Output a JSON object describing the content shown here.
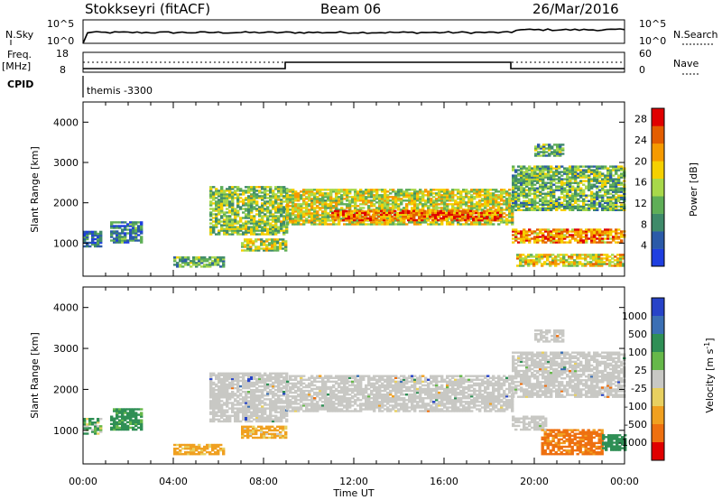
{
  "header": {
    "title": "Stokkseyri (fitACF)",
    "beam": "Beam 06",
    "date": "26/Mar/2016"
  },
  "top_panels": {
    "nsky_label": "N.Sky",
    "nsearch_label": "N.Search",
    "nsky_ticks": [
      "10^5",
      "10^0"
    ],
    "nsearch_ticks": [
      "10^5",
      "10^0"
    ],
    "freq_label": "Freq.",
    "freq_unit": "[MHz]",
    "freq_ticks": [
      "18",
      "8"
    ],
    "nave_label": "Nave",
    "nave_ticks": [
      "60",
      "0"
    ],
    "cpid_label": "CPID",
    "cpid_text": "themis -3300"
  },
  "colors": {
    "power_scale": [
      "#1f3fe0",
      "#2b5aa8",
      "#3f8a6a",
      "#5fae57",
      "#a8d84a",
      "#f5d000",
      "#f59a00",
      "#e35d00",
      "#e00000"
    ],
    "velocity_scale": [
      "#2743c8",
      "#3b6fb4",
      "#2f8f55",
      "#66b84a",
      "#c8c8c4",
      "#e8d060",
      "#f0a020",
      "#ee7010",
      "#e00000"
    ],
    "ground_scatter": "#c8c8c4"
  },
  "chart_data": [
    {
      "type": "heatmap",
      "panel": "power",
      "title": "",
      "xlabel": "Time UT",
      "ylabel": "Slant Range [km]",
      "xlim": [
        "00:00",
        "00:00"
      ],
      "ylim": [
        180,
        4500
      ],
      "x_ticks": [
        "00:00",
        "04:00",
        "08:00",
        "12:00",
        "16:00",
        "20:00",
        "00:00"
      ],
      "y_ticks": [
        "1000",
        "2000",
        "3000",
        "4000"
      ],
      "colorbar": {
        "label": "Power [dB]",
        "ticks": [
          "4",
          "8",
          "12",
          "16",
          "20",
          "24",
          "28"
        ],
        "range": [
          0,
          30
        ]
      },
      "regions": [
        {
          "t0": 0.0,
          "t1": 0.8,
          "r0": 900,
          "r1": 1300,
          "level": 0.2
        },
        {
          "t0": 1.2,
          "t1": 2.6,
          "r0": 1000,
          "r1": 1500,
          "level": 0.25
        },
        {
          "t0": 4.0,
          "t1": 6.2,
          "r0": 400,
          "r1": 650,
          "level": 0.35
        },
        {
          "t0": 5.6,
          "t1": 9.0,
          "r0": 1200,
          "r1": 2400,
          "level": 0.45
        },
        {
          "t0": 7.0,
          "t1": 9.0,
          "r0": 800,
          "r1": 1100,
          "level": 0.5
        },
        {
          "t0": 9.0,
          "t1": 19.0,
          "r0": 1450,
          "r1": 2350,
          "level": 0.55
        },
        {
          "t0": 11.0,
          "t1": 18.5,
          "r0": 1550,
          "r1": 1800,
          "level": 0.8
        },
        {
          "t0": 19.0,
          "t1": 24.0,
          "r0": 1000,
          "r1": 1350,
          "level": 0.75
        },
        {
          "t0": 19.2,
          "t1": 24.0,
          "r0": 420,
          "r1": 700,
          "level": 0.6
        },
        {
          "t0": 19.0,
          "t1": 24.0,
          "r0": 1800,
          "r1": 2900,
          "level": 0.4
        },
        {
          "t0": 20.0,
          "t1": 21.3,
          "r0": 3150,
          "r1": 3450,
          "level": 0.35
        }
      ]
    },
    {
      "type": "heatmap",
      "panel": "velocity",
      "title": "",
      "xlabel": "Time UT",
      "ylabel": "Slant Range [km]",
      "xlim": [
        "00:00",
        "00:00"
      ],
      "ylim": [
        180,
        4500
      ],
      "x_ticks": [
        "00:00",
        "04:00",
        "08:00",
        "12:00",
        "16:00",
        "20:00",
        "00:00"
      ],
      "y_ticks": [
        "1000",
        "2000",
        "3000",
        "4000"
      ],
      "colorbar": {
        "label": "Velocity [m s^-1]",
        "ticks": [
          "1000",
          "500",
          "100",
          "25",
          "-25",
          "-100",
          "-500",
          "-1000"
        ]
      },
      "regions": [
        {
          "t0": 0.0,
          "t1": 0.8,
          "r0": 900,
          "r1": 1300,
          "value": 100
        },
        {
          "t0": 1.2,
          "t1": 2.6,
          "r0": 1000,
          "r1": 1500,
          "value": 200
        },
        {
          "t0": 4.0,
          "t1": 6.2,
          "r0": 400,
          "r1": 650,
          "value": -200
        },
        {
          "t0": 5.6,
          "t1": 9.0,
          "r0": 1200,
          "r1": 2400,
          "value": 0
        },
        {
          "t0": 7.0,
          "t1": 9.0,
          "r0": 800,
          "r1": 1100,
          "value": -150
        },
        {
          "t0": 9.0,
          "t1": 19.0,
          "r0": 1450,
          "r1": 2350,
          "value": 0
        },
        {
          "t0": 19.0,
          "t1": 24.0,
          "r0": 1800,
          "r1": 2900,
          "value": 0
        },
        {
          "t0": 19.0,
          "t1": 20.5,
          "r0": 1000,
          "r1": 1350,
          "value": 0
        },
        {
          "t0": 20.3,
          "t1": 23.0,
          "r0": 400,
          "r1": 1000,
          "value": -600
        },
        {
          "t0": 23.0,
          "t1": 24.0,
          "r0": 500,
          "r1": 900,
          "value": 300
        },
        {
          "t0": 20.0,
          "t1": 21.3,
          "r0": 3150,
          "r1": 3450,
          "value": 0
        }
      ]
    }
  ]
}
